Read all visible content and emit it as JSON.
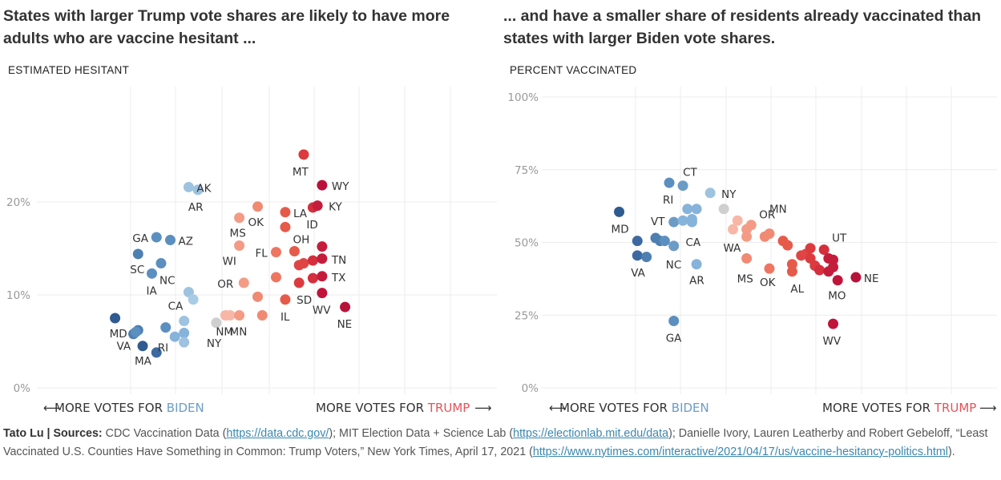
{
  "titles": {
    "left": "States with larger Trump vote shares are likely to have more adults who are vaccine hesitant ...",
    "right": "... and have a smaller share of residents already vaccinated than states with larger Biden vote shares."
  },
  "axis_captions": {
    "left": "ESTIMATED HESITANT",
    "right": "PERCENT VACCINATED"
  },
  "x_axis": {
    "left_arrow": "⟵",
    "biden_prefix": "MORE VOTES FOR ",
    "biden_word": "BIDEN",
    "trump_prefix": "MORE VOTES FOR ",
    "trump_word": "TRUMP",
    "right_arrow": "⟶"
  },
  "footer": {
    "author": "Tato Lu | ",
    "sources_label": "Sources:",
    "text1": " CDC Vaccination Data (",
    "link1": "https://data.cdc.gov/",
    "text2": "); MIT Election Data + Science Lab (",
    "link2": "https://electionlab.mit.edu/data",
    "text3": "); Danielle Ivory, Lauren Leatherby and Robert Gebeloff, “Least Vaccinated U.S. Counties Have Something in Common: Trump Voters,” New York Times, April 17, 2021 (",
    "link3": "https://www.nytimes.com/interactive/2021/04/17/us/vaccine-hesitancy-politics.html",
    "text4": ")."
  },
  "colors": {
    "grid": "#ececec",
    "blue_dark": "#2f5b8f",
    "blue_mid": "#5b8fc0",
    "blue_light": "#9ec3e0",
    "neutral": "#cccccc",
    "red_light": "#f49b85",
    "red_mid": "#e65a4a",
    "red_dark": "#c0143a",
    "biden_text": "#6c9cc6",
    "trump_text": "#e2545a"
  },
  "chart_data": [
    {
      "type": "scatter",
      "title": "States with larger Trump vote shares are likely to have more adults who are vaccine hesitant ...",
      "xlabel": "MORE VOTES FOR BIDEN / MORE VOTES FOR TRUMP",
      "ylabel": "ESTIMATED HESITANT",
      "x_unit": "Trump margin (pct points)",
      "xlim": [
        -50,
        50
      ],
      "ylim": [
        0,
        30
      ],
      "y_ticks": [
        {
          "value": 0,
          "label": "0%"
        },
        {
          "value": 10,
          "label": "10%"
        },
        {
          "value": 20,
          "label": "20%"
        }
      ],
      "grid": true,
      "points": [
        {
          "x": -33,
          "y": 7.5,
          "label": "MD",
          "lx": -7,
          "ly": 24,
          "color": "#2f5b8f"
        },
        {
          "x": -29,
          "y": 5.8,
          "label": "VA",
          "lx": -21,
          "ly": 20,
          "color": "#4d7fb1"
        },
        {
          "x": -28,
          "y": 6.2,
          "label": "",
          "color": "#4d7fb1"
        },
        {
          "x": -27,
          "y": 4.5,
          "label": "MA",
          "lx": -10,
          "ly": 23,
          "color": "#2f5b8f"
        },
        {
          "x": -24,
          "y": 3.8,
          "label": "",
          "color": "#3c6aa0"
        },
        {
          "x": -28.5,
          "y": 6.0,
          "label": "",
          "color": "#5b8fc0"
        },
        {
          "x": -22,
          "y": 6.5,
          "label": "RI",
          "lx": -10,
          "ly": 30,
          "color": "#5b8fc0"
        },
        {
          "x": -20,
          "y": 5.5,
          "label": "",
          "color": "#86b3da"
        },
        {
          "x": -18,
          "y": 5.9,
          "label": "",
          "color": "#86b3da"
        },
        {
          "x": -18,
          "y": 4.9,
          "label": "",
          "color": "#9ec3e0"
        },
        {
          "x": -18,
          "y": 7.2,
          "label": "CA",
          "lx": -20,
          "ly": -14,
          "color": "#9ec3e0"
        },
        {
          "x": -17,
          "y": 10.3,
          "label": "",
          "color": "#9ec3e0"
        },
        {
          "x": -16,
          "y": 9.5,
          "label": "",
          "color": "#a9cce6"
        },
        {
          "x": -28,
          "y": 14.4,
          "label": "SC",
          "lx": -10,
          "ly": 24,
          "color": "#4d7fb1"
        },
        {
          "x": -25,
          "y": 12.3,
          "label": "IA",
          "lx": -7,
          "ly": 26,
          "color": "#5b8fc0"
        },
        {
          "x": -23,
          "y": 13.4,
          "label": "NC",
          "lx": -2,
          "ly": 26,
          "color": "#5b8fc0"
        },
        {
          "x": -24,
          "y": 16.2,
          "label": "GA",
          "lx": -30,
          "ly": 6,
          "color": "#5b8fc0"
        },
        {
          "x": -21,
          "y": 15.9,
          "label": "AZ",
          "lx": 10,
          "ly": 6,
          "color": "#5b8fc0"
        },
        {
          "x": -17,
          "y": 21.6,
          "label": "AK",
          "lx": 10,
          "ly": 6,
          "color": "#9ec3e0"
        },
        {
          "x": -15,
          "y": 21.3,
          "label": "AR",
          "lx": -12,
          "ly": 26,
          "color": "#9ec3e0"
        },
        {
          "x": -11,
          "y": 7.0,
          "label": "NY",
          "lx": -12,
          "ly": 30,
          "color": "#cfcfcf"
        },
        {
          "x": -9,
          "y": 7.8,
          "label": "NM",
          "lx": -12,
          "ly": 25,
          "color": "#f8b7a6"
        },
        {
          "x": -8,
          "y": 7.8,
          "label": "",
          "color": "#f8b7a6"
        },
        {
          "x": -6,
          "y": 7.8,
          "label": "MN",
          "lx": -12,
          "ly": 25,
          "color": "#f49b85"
        },
        {
          "x": -5,
          "y": 11.3,
          "label": "OR",
          "lx": -33,
          "ly": 6,
          "color": "#f49b85"
        },
        {
          "x": -6,
          "y": 15.3,
          "label": "WI",
          "lx": -21,
          "ly": 24,
          "color": "#f49b85"
        },
        {
          "x": -6,
          "y": 18.3,
          "label": "MS",
          "lx": -12,
          "ly": 24,
          "color": "#f49b85"
        },
        {
          "x": -2,
          "y": 19.5,
          "label": "OK",
          "lx": -12,
          "ly": 24,
          "color": "#f08a73"
        },
        {
          "x": -2,
          "y": 9.8,
          "label": "",
          "color": "#f08a73"
        },
        {
          "x": -1,
          "y": 7.8,
          "label": "",
          "color": "#f08a73"
        },
        {
          "x": 2,
          "y": 14.6,
          "label": "FL",
          "lx": -26,
          "ly": 6,
          "color": "#ee7660"
        },
        {
          "x": 2,
          "y": 11.9,
          "label": "",
          "color": "#ee7660"
        },
        {
          "x": 4,
          "y": 9.5,
          "label": "IL",
          "lx": -6,
          "ly": 26,
          "color": "#e65a4a"
        },
        {
          "x": 4,
          "y": 18.9,
          "label": "LA",
          "lx": 10,
          "ly": 6,
          "color": "#e65a4a"
        },
        {
          "x": 4,
          "y": 17.3,
          "label": "",
          "color": "#e65a4a"
        },
        {
          "x": 6,
          "y": 14.7,
          "label": "OH",
          "lx": -2,
          "ly": -10,
          "color": "#e65a4a"
        },
        {
          "x": 7,
          "y": 13.2,
          "label": "",
          "color": "#e04545"
        },
        {
          "x": 8,
          "y": 13.4,
          "label": "",
          "color": "#e04545"
        },
        {
          "x": 7,
          "y": 11.3,
          "label": "SD",
          "lx": -3,
          "ly": 26,
          "color": "#db3b3f"
        },
        {
          "x": 8,
          "y": 25.1,
          "label": "MT",
          "lx": -14,
          "ly": 26,
          "color": "#dc3a3d"
        },
        {
          "x": 10,
          "y": 19.4,
          "label": "ID",
          "lx": -8,
          "ly": 26,
          "color": "#d52e3d"
        },
        {
          "x": 11,
          "y": 19.6,
          "label": "KY",
          "lx": 14,
          "ly": 6,
          "color": "#c41d3c"
        },
        {
          "x": 10,
          "y": 13.7,
          "label": "",
          "color": "#d52e3d"
        },
        {
          "x": 10,
          "y": 11.8,
          "label": "",
          "color": "#d52e3d"
        },
        {
          "x": 12,
          "y": 13.9,
          "label": "TN",
          "lx": 12,
          "ly": 6,
          "color": "#c41d3c"
        },
        {
          "x": 12,
          "y": 15.2,
          "label": "",
          "color": "#c41d3c"
        },
        {
          "x": 12,
          "y": 12.0,
          "label": "TX",
          "lx": 12,
          "ly": 6,
          "color": "#c41d3c"
        },
        {
          "x": 12,
          "y": 10.2,
          "label": "WV",
          "lx": -12,
          "ly": 26,
          "color": "#c0143a"
        },
        {
          "x": 12,
          "y": 21.8,
          "label": "WY",
          "lx": 12,
          "ly": 6,
          "color": "#b8113a"
        },
        {
          "x": 17,
          "y": 8.7,
          "label": "NE",
          "lx": -10,
          "ly": 26,
          "color": "#b8113a"
        }
      ]
    },
    {
      "type": "scatter",
      "title": "... and have a smaller share of residents already vaccinated than states with larger Biden vote shares.",
      "xlabel": "MORE VOTES FOR BIDEN / MORE VOTES FOR TRUMP",
      "ylabel": "PERCENT VACCINATED",
      "x_unit": "Trump margin (pct points)",
      "xlim": [
        -50,
        50
      ],
      "ylim": [
        0,
        100
      ],
      "y_ticks": [
        {
          "value": 0,
          "label": "0%"
        },
        {
          "value": 25,
          "label": "25%"
        },
        {
          "value": 50,
          "label": "50%"
        },
        {
          "value": 75,
          "label": "75%"
        },
        {
          "value": 100,
          "label": "100%"
        }
      ],
      "grid": true,
      "points": [
        {
          "x": -33,
          "y": 60.5,
          "label": "MD",
          "lx": -10,
          "ly": 26,
          "color": "#2f5b8f"
        },
        {
          "x": -29,
          "y": 50.5,
          "label": "",
          "color": "#3c6aa0"
        },
        {
          "x": -29,
          "y": 45.5,
          "label": "VA",
          "lx": -8,
          "ly": 26,
          "color": "#3c6aa0"
        },
        {
          "x": -27,
          "y": 45.0,
          "label": "",
          "color": "#4d7fb1"
        },
        {
          "x": -25,
          "y": 51.5,
          "label": "VT",
          "lx": -6,
          "ly": -16,
          "color": "#4d7fb1"
        },
        {
          "x": -24,
          "y": 50.5,
          "label": "",
          "color": "#4d7fb1"
        },
        {
          "x": -23,
          "y": 50.5,
          "label": "",
          "color": "#5b8fc0"
        },
        {
          "x": -21,
          "y": 48.8,
          "label": "NC",
          "lx": -10,
          "ly": 28,
          "color": "#6c9cc6"
        },
        {
          "x": -22,
          "y": 70.5,
          "label": "RI",
          "lx": -8,
          "ly": 26,
          "color": "#5b8fc0"
        },
        {
          "x": -21,
          "y": 57.0,
          "label": "",
          "color": "#6c9cc6"
        },
        {
          "x": -19,
          "y": 69.5,
          "label": "CT",
          "lx": 0,
          "ly": -12,
          "color": "#6c9cc6"
        },
        {
          "x": -19,
          "y": 57.5,
          "label": "",
          "color": "#86b3da"
        },
        {
          "x": -18,
          "y": 61.5,
          "label": "",
          "color": "#86b3da"
        },
        {
          "x": -17,
          "y": 57.0,
          "label": "CA",
          "lx": -8,
          "ly": 30,
          "color": "#86b3da"
        },
        {
          "x": -17,
          "y": 58.0,
          "label": "",
          "color": "#86b3da"
        },
        {
          "x": -16,
          "y": 61.5,
          "label": "",
          "color": "#86b3da"
        },
        {
          "x": -16,
          "y": 42.5,
          "label": "AR",
          "lx": -9,
          "ly": 25,
          "color": "#86b3da"
        },
        {
          "x": -13,
          "y": 67.0,
          "label": "NY",
          "lx": 14,
          "ly": 6,
          "color": "#9ec3e0"
        },
        {
          "x": -21,
          "y": 23.0,
          "label": "GA",
          "lx": -10,
          "ly": 26,
          "color": "#5b8fc0"
        },
        {
          "x": -10,
          "y": 61.5,
          "label": "",
          "color": "#cfcfcf"
        },
        {
          "x": -8,
          "y": 54.5,
          "label": "WA",
          "lx": -12,
          "ly": 28,
          "color": "#f8b7a6"
        },
        {
          "x": -7,
          "y": 57.5,
          "label": "",
          "color": "#f8b7a6"
        },
        {
          "x": -5,
          "y": 52.0,
          "label": "",
          "color": "#f49b85"
        },
        {
          "x": -5,
          "y": 54.5,
          "label": "",
          "color": "#f49b85"
        },
        {
          "x": -4,
          "y": 56.0,
          "label": "OR",
          "lx": 10,
          "ly": -8,
          "color": "#f49b85"
        },
        {
          "x": -5,
          "y": 44.5,
          "label": "MS",
          "lx": -12,
          "ly": 30,
          "color": "#f08a73"
        },
        {
          "x": -1,
          "y": 52.0,
          "label": "",
          "color": "#f08a73"
        },
        {
          "x": 0,
          "y": 53.0,
          "label": "MN",
          "lx": 0,
          "ly": -26,
          "color": "#f08a73"
        },
        {
          "x": 0,
          "y": 41.0,
          "label": "OK",
          "lx": -12,
          "ly": 22,
          "color": "#ee7660"
        },
        {
          "x": 3,
          "y": 50.5,
          "label": "",
          "color": "#e65a4a"
        },
        {
          "x": 4,
          "y": 49.0,
          "label": "",
          "color": "#e65a4a"
        },
        {
          "x": 5,
          "y": 42.5,
          "label": "",
          "color": "#e65a4a"
        },
        {
          "x": 5,
          "y": 40.0,
          "label": "AL",
          "lx": -2,
          "ly": 26,
          "color": "#e65a4a"
        },
        {
          "x": 7,
          "y": 45.5,
          "label": "",
          "color": "#e04545"
        },
        {
          "x": 8,
          "y": 46.0,
          "label": "",
          "color": "#e04545"
        },
        {
          "x": 9,
          "y": 48.0,
          "label": "",
          "color": "#db3b3f"
        },
        {
          "x": 9,
          "y": 44.5,
          "label": "",
          "color": "#db3b3f"
        },
        {
          "x": 10,
          "y": 42.0,
          "label": "",
          "color": "#db3b3f"
        },
        {
          "x": 11,
          "y": 40.5,
          "label": "",
          "color": "#d52e3d"
        },
        {
          "x": 12,
          "y": 47.5,
          "label": "UT",
          "lx": 10,
          "ly": -10,
          "color": "#d52e3d"
        },
        {
          "x": 13,
          "y": 44.5,
          "label": "",
          "color": "#c41d3c"
        },
        {
          "x": 13,
          "y": 40.0,
          "label": "",
          "color": "#c41d3c"
        },
        {
          "x": 14,
          "y": 41.5,
          "label": "",
          "color": "#c41d3c"
        },
        {
          "x": 14,
          "y": 44.0,
          "label": "",
          "color": "#c41d3c"
        },
        {
          "x": 15,
          "y": 37.0,
          "label": "MO",
          "lx": -12,
          "ly": 24,
          "color": "#c0143a"
        },
        {
          "x": 14,
          "y": 22.0,
          "label": "WV",
          "lx": -13,
          "ly": 26,
          "color": "#c0143a"
        },
        {
          "x": 19,
          "y": 38.0,
          "label": "NE",
          "lx": 10,
          "ly": 6,
          "color": "#b8113a"
        }
      ]
    }
  ]
}
